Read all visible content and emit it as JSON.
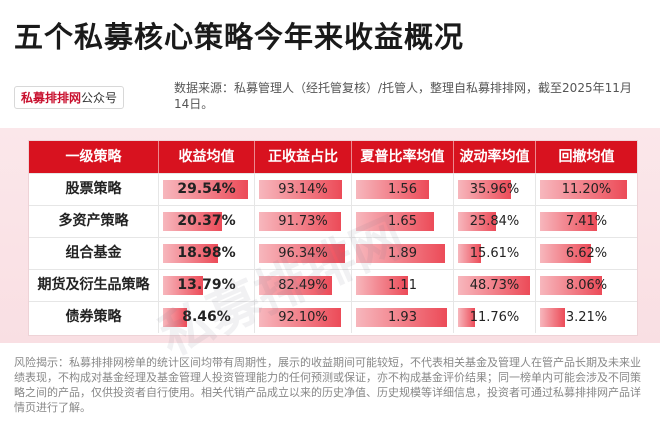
{
  "title": "五个私募核心策略今年来收益概况",
  "brand": {
    "name": "私募排排网",
    "suffix": "公众号"
  },
  "source_text": "数据来源：私募管理人（经托管复核）/托管人，整理自私募排排网，截至2025年11月14日。",
  "watermark": "私募排排网",
  "disclaimer": "风险揭示：私募排排网榜单的统计区间均带有周期性，展示的收益期间可能较短，不代表相关基金及管理人在管产品长期及未来业绩表现，不构成对基金经理及基金管理人投资管理能力的任何预测或保证，亦不构成基金评价结果；同一榜单内可能会涉及不同策略之间的产品，仅供投资者自行使用。相关代销产品成立以来的历史净值、历史规模等详细信息，投资者可通过私募排排网产品详情页进行了解。",
  "colors": {
    "header": "#d8121f",
    "bar": "#ec4b58",
    "panel": "#fbe7ea"
  },
  "chart_data": {
    "type": "table",
    "columns": [
      "一级策略",
      "收益均值",
      "正收益占比",
      "夏普比率均值",
      "波动率均值",
      "回撤均值"
    ],
    "rows": [
      {
        "label": "股票策略",
        "values": [
          "29.54%",
          "93.14%",
          "1.56",
          "35.96%",
          "11.20%"
        ],
        "numbers": [
          29.54,
          93.14,
          1.56,
          35.96,
          11.2
        ]
      },
      {
        "label": "多资产策略",
        "values": [
          "20.37%",
          "91.73%",
          "1.65",
          "25.84%",
          "7.41%"
        ],
        "numbers": [
          20.37,
          91.73,
          1.65,
          25.84,
          7.41
        ]
      },
      {
        "label": "组合基金",
        "values": [
          "18.98%",
          "96.34%",
          "1.89",
          "15.61%",
          "6.62%"
        ],
        "numbers": [
          18.98,
          96.34,
          1.89,
          15.61,
          6.62
        ]
      },
      {
        "label": "期货及衍生品策略",
        "values": [
          "13.79%",
          "82.49%",
          "1.11",
          "48.73%",
          "8.06%"
        ],
        "numbers": [
          13.79,
          82.49,
          1.11,
          48.73,
          8.06
        ]
      },
      {
        "label": "债券策略",
        "values": [
          "8.46%",
          "92.10%",
          "1.93",
          "11.76%",
          "3.21%"
        ],
        "numbers": [
          8.46,
          92.1,
          1.93,
          11.76,
          3.21
        ]
      }
    ]
  }
}
